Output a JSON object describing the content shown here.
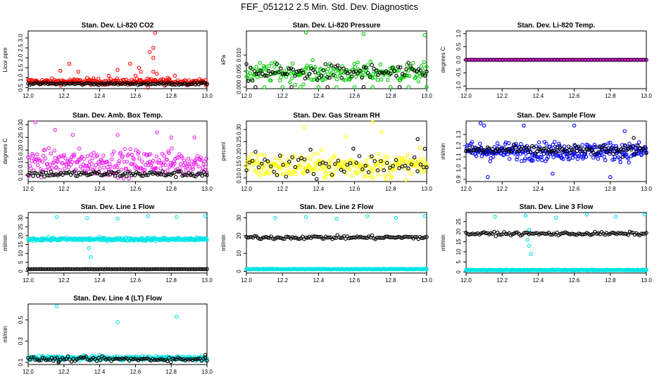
{
  "title": "FEF_051212  2.5 Min. Std. Dev. Diagnostics",
  "chart_data": [
    {
      "type": "scatter",
      "title": "Stan. Dev. Li-820 CO2",
      "ylabel": "Licor ppm",
      "xlim": [
        12.0,
        13.0
      ],
      "ylim": [
        0.45,
        3.35
      ],
      "xticks": [
        "12.0",
        "12.2",
        "12.4",
        "12.6",
        "12.8",
        "13.0"
      ],
      "xtick_values": [
        12.0,
        12.2,
        12.4,
        12.6,
        12.8,
        13.0
      ],
      "yticks": [
        "0.5",
        "1.0",
        "1.5",
        "2.0",
        "2.5",
        "3.0"
      ],
      "ytick_values": [
        0.5,
        1.0,
        1.5,
        2.0,
        2.5,
        3.0
      ],
      "series": [
        {
          "color": "#ff0000",
          "base": 0.8,
          "spread": 0.15,
          "n": 220,
          "outliers": [
            [
              12.18,
              1.35
            ],
            [
              12.23,
              1.7
            ],
            [
              12.28,
              1.3
            ],
            [
              12.33,
              1.0
            ],
            [
              12.45,
              1.1
            ],
            [
              12.5,
              1.4
            ],
            [
              12.57,
              1.7
            ],
            [
              12.6,
              1.1
            ],
            [
              12.62,
              1.5
            ],
            [
              12.63,
              1.3
            ],
            [
              12.68,
              2.3
            ],
            [
              12.7,
              2.0
            ],
            [
              12.7,
              2.5
            ],
            [
              12.71,
              3.25
            ],
            [
              12.7,
              1.3
            ],
            [
              12.72,
              1.2
            ],
            [
              12.78,
              1.0
            ],
            [
              12.82,
              1.1
            ],
            [
              12.67,
              0.5
            ]
          ]
        },
        {
          "color": "#000000",
          "base": 0.7,
          "spread": 0.06,
          "n": 110,
          "outliers": []
        }
      ]
    },
    {
      "type": "scatter",
      "title": "Stan. Dev. Li-820 Pressure",
      "ylabel": "kPa",
      "xlim": [
        12.0,
        13.0
      ],
      "ylim": [
        -0.0005,
        0.0175
      ],
      "xticks": [
        "12.0",
        "12.2",
        "12.4",
        "12.6",
        "12.8",
        "13.0"
      ],
      "xtick_values": [
        12.0,
        12.2,
        12.4,
        12.6,
        12.8,
        13.0
      ],
      "yticks": [
        "0.000",
        "0.005",
        "0.010"
      ],
      "ytick_values": [
        0.0,
        0.005,
        0.01
      ],
      "series": [
        {
          "color": "#00cc00",
          "base": 0.0045,
          "spread": 0.003,
          "n": 200,
          "outliers": [
            [
              12.33,
              0.017
            ],
            [
              12.65,
              0.0165
            ],
            [
              12.99,
              0.0162
            ],
            [
              12.4,
              0.0
            ],
            [
              12.1,
              0.0
            ],
            [
              12.2,
              0.0
            ],
            [
              12.3,
              0.0
            ],
            [
              12.5,
              0.0
            ],
            [
              12.6,
              0.0
            ],
            [
              12.7,
              0.0
            ],
            [
              12.8,
              0.0
            ],
            [
              12.9,
              0.0
            ],
            [
              13.0,
              0.0
            ]
          ]
        },
        {
          "color": "#000000",
          "base": 0.0045,
          "spread": 0.0025,
          "n": 90,
          "outliers": [
            [
              12.05,
              0.0
            ],
            [
              12.25,
              0.0
            ],
            [
              12.45,
              0.0
            ],
            [
              12.65,
              0.0
            ],
            [
              12.85,
              0.0
            ]
          ]
        }
      ]
    },
    {
      "type": "scatter",
      "title": "Stan. Dev. Li-820 Temp.",
      "ylabel": "degrees C",
      "xlim": [
        12.0,
        13.0
      ],
      "ylim": [
        -1.1,
        1.1
      ],
      "xticks": [
        "12.0",
        "12.2",
        "12.4",
        "12.6",
        "12.8",
        "13.0"
      ],
      "xtick_values": [
        12.0,
        12.2,
        12.4,
        12.6,
        12.8,
        13.0
      ],
      "yticks": [
        "-1.0",
        "-0.5",
        "0.0",
        "0.5",
        "1.0"
      ],
      "ytick_values": [
        -1.0,
        -0.5,
        0.0,
        0.5,
        1.0
      ],
      "series": [
        {
          "color": "#ff00ff",
          "base": 0.0,
          "spread": 0.0,
          "n": 160,
          "outliers": []
        },
        {
          "color": "#000000",
          "base": 0.0,
          "spread": 0.0,
          "n": 60,
          "outliers": []
        }
      ]
    },
    {
      "type": "scatter",
      "title": "Stan. Dev. Amb. Box Temp.",
      "ylabel": "degrees C",
      "xlim": [
        12.0,
        13.0
      ],
      "ylim": [
        0.075,
        0.315
      ],
      "xticks": [
        "12.0",
        "12.2",
        "12.4",
        "12.6",
        "12.8",
        "13.0"
      ],
      "xtick_values": [
        12.0,
        12.2,
        12.4,
        12.6,
        12.8,
        13.0
      ],
      "yticks": [
        "0.10",
        "0.15",
        "0.20",
        "0.25",
        "0.30"
      ],
      "ytick_values": [
        0.1,
        0.15,
        0.2,
        0.25,
        0.3
      ],
      "series": [
        {
          "color": "#ee22ee",
          "base": 0.15,
          "spread": 0.05,
          "n": 260,
          "outliers": [
            [
              12.04,
              0.31
            ],
            [
              12.15,
              0.28
            ],
            [
              12.25,
              0.26
            ],
            [
              12.5,
              0.26
            ],
            [
              12.72,
              0.27
            ],
            [
              12.8,
              0.25
            ],
            [
              12.93,
              0.25
            ]
          ]
        },
        {
          "color": "#000000",
          "base": 0.105,
          "spread": 0.012,
          "n": 110,
          "outliers": []
        }
      ]
    },
    {
      "type": "scatter",
      "title": "Stan. Dev. Gas Stream RH",
      "ylabel": "percent",
      "xlim": [
        12.0,
        13.0
      ],
      "ylim": [
        0.085,
        0.335
      ],
      "xticks": [
        "12.0",
        "12.2",
        "12.4",
        "12.6",
        "12.8",
        "13.0"
      ],
      "xtick_values": [
        12.0,
        12.2,
        12.4,
        12.6,
        12.8,
        13.0
      ],
      "yticks": [
        "0.10",
        "0.15",
        "0.20",
        "0.25",
        "0.30"
      ],
      "ytick_values": [
        0.1,
        0.15,
        0.2,
        0.25,
        0.3
      ],
      "series": [
        {
          "color": "#ffff00",
          "base": 0.15,
          "spread": 0.05,
          "n": 260,
          "outliers": [
            [
              12.32,
              0.31
            ],
            [
              12.55,
              0.27
            ],
            [
              12.7,
              0.33
            ],
            [
              12.75,
              0.29
            ]
          ]
        },
        {
          "color": "#000000",
          "base": 0.16,
          "spread": 0.05,
          "n": 60,
          "outliers": [
            [
              12.95,
              0.26
            ],
            [
              12.99,
              0.22
            ]
          ]
        }
      ]
    },
    {
      "type": "scatter",
      "title": "Stan. Dev. Sample Flow",
      "ylabel": "ml/min",
      "xlim": [
        12.0,
        13.0
      ],
      "ylim": [
        0.88,
        1.42
      ],
      "xticks": [
        "12.0",
        "12.2",
        "12.4",
        "12.6",
        "12.8",
        "13.0"
      ],
      "xtick_values": [
        12.0,
        12.2,
        12.4,
        12.6,
        12.8,
        13.0
      ],
      "yticks": [
        "0.9",
        "1.0",
        "1.1",
        "1.2",
        "1.3"
      ],
      "ytick_values": [
        0.9,
        1.0,
        1.1,
        1.2,
        1.3
      ],
      "series": [
        {
          "color": "#0000ff",
          "base": 1.15,
          "spread": 0.08,
          "n": 300,
          "outliers": [
            [
              12.08,
              1.4
            ],
            [
              12.1,
              1.38
            ],
            [
              12.32,
              1.38
            ],
            [
              12.48,
              0.95
            ],
            [
              12.6,
              1.38
            ],
            [
              12.8,
              0.92
            ],
            [
              12.88,
              1.33
            ],
            [
              12.12,
              0.92
            ]
          ]
        },
        {
          "color": "#000000",
          "base": 1.16,
          "spread": 0.04,
          "n": 110,
          "outliers": [
            [
              12.93,
              1.27
            ],
            [
              12.87,
              1.1
            ]
          ]
        }
      ]
    },
    {
      "type": "scatter",
      "title": "Stan. Dev. Line 1 Flow",
      "ylabel": "ml/min",
      "xlim": [
        12.0,
        13.0
      ],
      "ylim": [
        -1.0,
        33.0
      ],
      "xticks": [
        "12.0",
        "12.2",
        "12.4",
        "12.6",
        "12.8",
        "13.0"
      ],
      "xtick_values": [
        12.0,
        12.2,
        12.4,
        12.6,
        12.8,
        13.0
      ],
      "yticks": [
        "0",
        "5",
        "10",
        "15",
        "20",
        "25",
        "30"
      ],
      "ytick_values": [
        0,
        5,
        10,
        15,
        20,
        25,
        30
      ],
      "series": [
        {
          "color": "#00e5e5",
          "base": 18.0,
          "spread": 0.9,
          "n": 300,
          "outliers": [
            [
              12.16,
              30.5
            ],
            [
              12.33,
              30.0
            ],
            [
              12.5,
              29.5
            ],
            [
              12.67,
              31.0
            ],
            [
              12.83,
              30.5
            ],
            [
              12.99,
              31.0
            ],
            [
              12.34,
              13.0
            ],
            [
              12.35,
              8.0
            ]
          ]
        },
        {
          "color": "#000000",
          "base": 1.2,
          "spread": 0.1,
          "n": 95,
          "outliers": []
        }
      ]
    },
    {
      "type": "scatter",
      "title": "Stan. Dev. Line 2 Flow",
      "ylabel": "ml/min",
      "xlim": [
        12.0,
        13.0
      ],
      "ylim": [
        -1.0,
        33.0
      ],
      "xticks": [
        "12.0",
        "12.2",
        "12.4",
        "12.6",
        "12.8",
        "13.0"
      ],
      "xtick_values": [
        12.0,
        12.2,
        12.4,
        12.6,
        12.8,
        13.0
      ],
      "yticks": [
        "0",
        "10",
        "20",
        "30"
      ],
      "ytick_values": [
        0,
        10,
        20,
        30
      ],
      "series": [
        {
          "color": "#00e5e5",
          "base": 1.2,
          "spread": 0.2,
          "n": 300,
          "outliers": [
            [
              12.16,
              30.0
            ],
            [
              12.33,
              30.5
            ],
            [
              12.5,
              29.5
            ],
            [
              12.67,
              31.0
            ],
            [
              12.83,
              30.0
            ],
            [
              12.99,
              31.0
            ]
          ]
        },
        {
          "color": "#000000",
          "base": 19.0,
          "spread": 1.0,
          "n": 110,
          "outliers": []
        }
      ]
    },
    {
      "type": "scatter",
      "title": "Stan. Dev. Line 3 Flow",
      "ylabel": "ml/min",
      "xlim": [
        12.0,
        13.0
      ],
      "ylim": [
        -0.5,
        29.5
      ],
      "xticks": [
        "12.0",
        "12.2",
        "12.4",
        "12.6",
        "12.8",
        "13.0"
      ],
      "xtick_values": [
        12.0,
        12.2,
        12.4,
        12.6,
        12.8,
        13.0
      ],
      "yticks": [
        "0",
        "5",
        "10",
        "15",
        "20",
        "25"
      ],
      "ytick_values": [
        0,
        5,
        10,
        15,
        20,
        25
      ],
      "series": [
        {
          "color": "#00e5e5",
          "base": 1.0,
          "spread": 0.2,
          "n": 300,
          "outliers": [
            [
              12.16,
              27.5
            ],
            [
              12.33,
              28.0
            ],
            [
              12.5,
              27.0
            ],
            [
              12.67,
              28.5
            ],
            [
              12.83,
              27.5
            ],
            [
              12.99,
              28.5
            ],
            [
              12.35,
              13.0
            ],
            [
              12.36,
              9.0
            ],
            [
              12.34,
              16.0
            ],
            [
              12.35,
              21.0
            ]
          ]
        },
        {
          "color": "#000000",
          "base": 19.0,
          "spread": 0.8,
          "n": 110,
          "outliers": []
        }
      ]
    },
    {
      "type": "scatter",
      "title": "Stan. Dev. Line 4 (LT) Flow",
      "ylabel": "ml/min",
      "xlim": [
        12.0,
        13.0
      ],
      "ylim": [
        0.08,
        0.65
      ],
      "xticks": [
        "12.0",
        "12.2",
        "12.4",
        "12.6",
        "12.8",
        "13.0"
      ],
      "xtick_values": [
        12.0,
        12.2,
        12.4,
        12.6,
        12.8,
        13.0
      ],
      "yticks": [
        "0.1",
        "0.3",
        "0.5"
      ],
      "ytick_values": [
        0.1,
        0.3,
        0.5
      ],
      "series": [
        {
          "color": "#00e5e5",
          "base": 0.14,
          "spread": 0.02,
          "n": 300,
          "outliers": [
            [
              12.16,
              0.63
            ],
            [
              12.5,
              0.48
            ],
            [
              12.83,
              0.53
            ]
          ]
        },
        {
          "color": "#000000",
          "base": 0.13,
          "spread": 0.02,
          "n": 100,
          "outliers": [
            [
              12.99,
              0.17
            ],
            [
              12.17,
              0.1
            ]
          ]
        }
      ]
    }
  ]
}
